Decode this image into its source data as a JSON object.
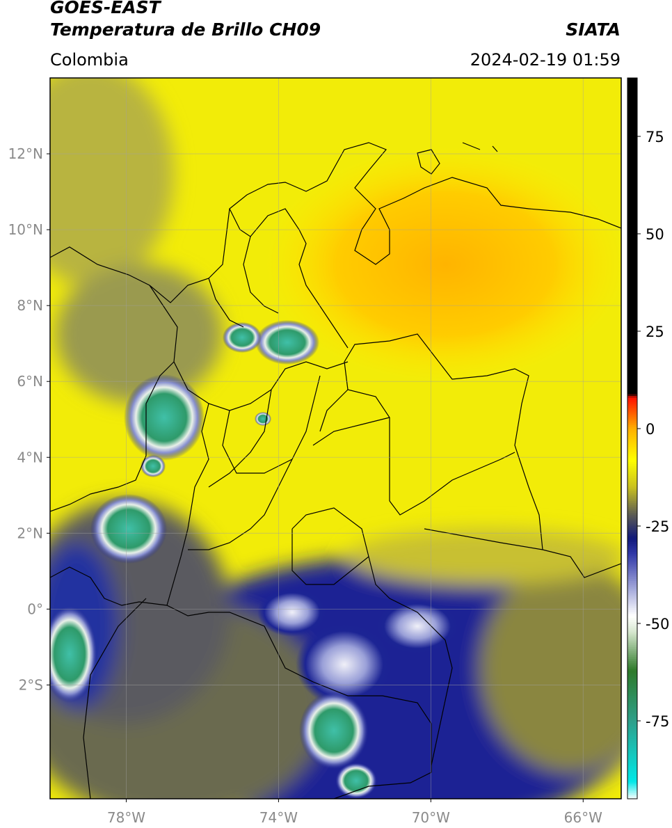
{
  "header": {
    "satellite": "GOES-EAST",
    "product": "Temperatura de Brillo CH09",
    "region": "Colombia",
    "agency": "SIATA",
    "datetime": "2024-02-19 01:59"
  },
  "map": {
    "lon_range": [
      -80,
      -65
    ],
    "lat_range": [
      -5,
      14
    ],
    "lat_ticks": [
      {
        "value": 12,
        "label": "12°N"
      },
      {
        "value": 10,
        "label": "10°N"
      },
      {
        "value": 8,
        "label": "8°N"
      },
      {
        "value": 6,
        "label": "6°N"
      },
      {
        "value": 4,
        "label": "4°N"
      },
      {
        "value": 2,
        "label": "2°N"
      },
      {
        "value": 0,
        "label": "0°"
      },
      {
        "value": -2,
        "label": "2°S"
      }
    ],
    "lon_ticks": [
      {
        "value": -78,
        "label": "78°W"
      },
      {
        "value": -74,
        "label": "74°W"
      },
      {
        "value": -70,
        "label": "70°W"
      },
      {
        "value": -66,
        "label": "66°W"
      }
    ],
    "grid": true
  },
  "colorbar": {
    "range": [
      -95,
      90
    ],
    "ticks": [
      {
        "value": 75,
        "label": "75"
      },
      {
        "value": 50,
        "label": "50"
      },
      {
        "value": 25,
        "label": "25"
      },
      {
        "value": 0,
        "label": "0"
      },
      {
        "value": -25,
        "label": "-25"
      },
      {
        "value": -50,
        "label": "-50"
      },
      {
        "value": -75,
        "label": "-75"
      }
    ],
    "stops": [
      {
        "value": -95,
        "color": "#ffffff"
      },
      {
        "value": -90.5,
        "color": "#00e8e8"
      },
      {
        "value": -75,
        "color": "#2ea08a"
      },
      {
        "value": -62,
        "color": "#2e7a2a"
      },
      {
        "value": -52,
        "color": "#d8e8d0"
      },
      {
        "value": -48,
        "color": "#ffffff"
      },
      {
        "value": -42,
        "color": "#b0b4e0"
      },
      {
        "value": -32,
        "color": "#3038a8"
      },
      {
        "value": -28,
        "color": "#10187a"
      },
      {
        "value": -22,
        "color": "#5c5c54"
      },
      {
        "value": -15,
        "color": "#c8c020"
      },
      {
        "value": -8,
        "color": "#ffff00"
      },
      {
        "value": 0,
        "color": "#ffb000"
      },
      {
        "value": 8,
        "color": "#ff1000"
      },
      {
        "value": 9,
        "color": "#000000"
      },
      {
        "value": 90,
        "color": "#000000"
      }
    ]
  }
}
